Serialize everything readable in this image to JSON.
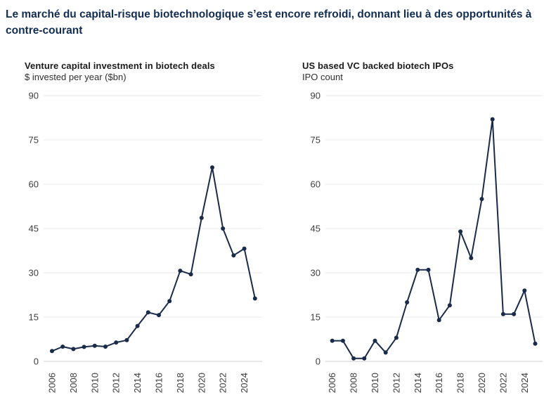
{
  "header": {
    "title": "Le marché du capital-risque biotechnologique s’est encore refroidi, donnant lieu à des opportunités à contre-courant"
  },
  "colors": {
    "heading_navy": "#122c52",
    "line_navy": "#1a2b4a",
    "gridline": "#eaeaea",
    "axis_line": "#cccccc",
    "tick_text": "#3d3d3d"
  },
  "chart_data": [
    {
      "type": "line",
      "title": "Venture capital investment in biotech deals",
      "subtitle": "$ invested per year ($bn)",
      "x": [
        2006,
        2007,
        2008,
        2009,
        2010,
        2011,
        2012,
        2013,
        2014,
        2015,
        2016,
        2017,
        2018,
        2019,
        2020,
        2021,
        2022,
        2023,
        2024,
        2025
      ],
      "values": [
        3.5,
        5.0,
        4.2,
        4.9,
        5.3,
        5.0,
        6.4,
        7.2,
        12.0,
        16.6,
        15.7,
        20.4,
        30.7,
        29.5,
        48.6,
        65.7,
        45.0,
        35.9,
        38.2,
        21.3
      ],
      "ylim": [
        0,
        90
      ],
      "yticks": [
        0,
        15,
        30,
        45,
        60,
        75,
        90
      ],
      "xtick_labels": [
        "2006",
        "2008",
        "2010",
        "2012",
        "2014",
        "2016",
        "2018",
        "2020",
        "2022",
        "2024"
      ],
      "grid": "horizontal",
      "legend": "none",
      "line_color": "#1a2b4a",
      "marker": "circle"
    },
    {
      "type": "line",
      "title": "US based VC backed biotech IPOs",
      "subtitle": "IPO count",
      "x": [
        2006,
        2007,
        2008,
        2009,
        2010,
        2011,
        2012,
        2013,
        2014,
        2015,
        2016,
        2017,
        2018,
        2019,
        2020,
        2021,
        2022,
        2023,
        2024,
        2025
      ],
      "values": [
        7,
        7,
        1,
        1,
        7,
        3,
        8,
        20,
        31,
        31,
        14,
        19,
        44,
        35,
        55,
        82,
        16,
        16,
        24,
        6
      ],
      "ylim": [
        0,
        90
      ],
      "yticks": [
        0,
        15,
        30,
        45,
        60,
        75,
        90
      ],
      "xtick_labels": [
        "2006",
        "2008",
        "2010",
        "2012",
        "2014",
        "2016",
        "2018",
        "2020",
        "2022",
        "2024"
      ],
      "grid": "horizontal",
      "legend": "none",
      "line_color": "#1a2b4a",
      "marker": "circle"
    }
  ]
}
